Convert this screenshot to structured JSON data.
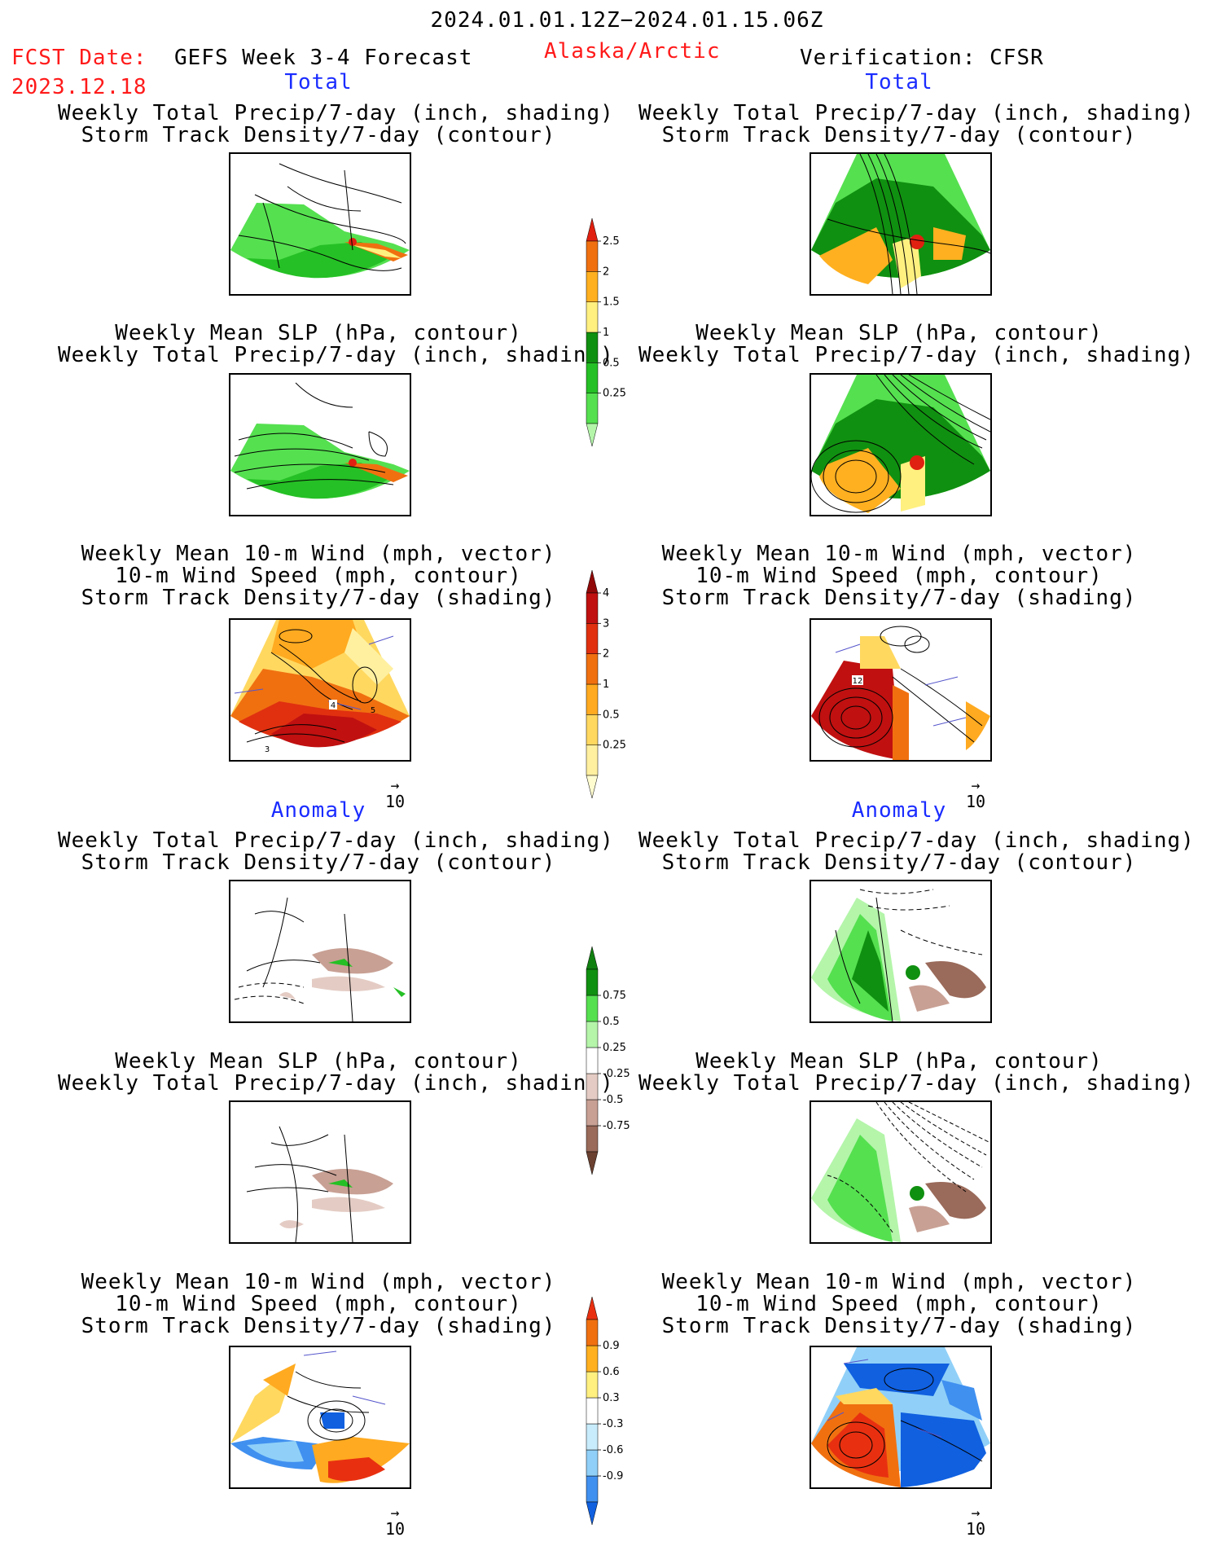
{
  "header": {
    "period": "2024.01.01.12Z−2024.01.15.06Z",
    "fcst_label": "FCST Date:",
    "fcst_date": "2023.12.18",
    "forecast_name": "GEFS Week 3-4 Forecast",
    "region": "Alaska/Arctic",
    "verification": "Verification: CFSR"
  },
  "sections": {
    "total_left": "Total",
    "total_right": "Total",
    "anomaly_left": "Anomaly",
    "anomaly_right": "Anomaly"
  },
  "titles": {
    "precip_storm": [
      "Weekly Total Precip/7-day (inch, shading)",
      "Storm Track Density/7-day (contour)"
    ],
    "slp_precip": [
      "Weekly Mean SLP (hPa, contour)",
      "Weekly Total Precip/7-day (inch, shading)"
    ],
    "wind": [
      "Weekly Mean 10-m Wind (mph, vector)",
      "10-m Wind Speed (mph, contour)",
      "Storm Track Density/7-day (shading)"
    ]
  },
  "reference_vector": "10",
  "map_labels": {
    "wind_total_left": [
      "4",
      "5",
      "3"
    ],
    "wind_total_right": [
      "12"
    ]
  },
  "chart_data": [
    {
      "type": "heatmap",
      "name": "precip colorbar (total)",
      "levels": [
        "0.25",
        "0.5",
        "1",
        "1.5",
        "2",
        "2.5"
      ],
      "colors": [
        "#b4f5aa",
        "#55e050",
        "#25c025",
        "#109010",
        "#fff080",
        "#ffb020",
        "#f07010",
        "#e02010"
      ]
    },
    {
      "type": "heatmap",
      "name": "storm track colorbar (total)",
      "levels": [
        "0.25",
        "0.5",
        "1",
        "2",
        "3",
        "4"
      ],
      "colors": [
        "#fffcd0",
        "#fff0a0",
        "#ffd860",
        "#ffaa20",
        "#f07010",
        "#e03010",
        "#c01010",
        "#900808"
      ]
    },
    {
      "type": "heatmap",
      "name": "precip anomaly colorbar",
      "levels": [
        "-0.75",
        "-0.5",
        "-0.25",
        "0.25",
        "0.5",
        "0.75"
      ],
      "colors": [
        "#6a4030",
        "#9a6a5a",
        "#c8a094",
        "#e4ccc4",
        "#ffffff",
        "#b4f5aa",
        "#55e050",
        "#109010",
        "#108010"
      ]
    },
    {
      "type": "heatmap",
      "name": "storm track anomaly colorbar",
      "levels": [
        "-0.9",
        "-0.6",
        "-0.3",
        "0.3",
        "0.6",
        "0.9"
      ],
      "colors": [
        "#1060e0",
        "#4090f0",
        "#90d0f8",
        "#c8ecfc",
        "#ffffff",
        "#fff080",
        "#ffb020",
        "#f07010",
        "#e83010"
      ]
    }
  ],
  "colors": {
    "precip_green_light": "#b4f5aa",
    "precip_green": "#55e050",
    "precip_green_dark": "#109010",
    "precip_orange": "#ffb020",
    "precip_red": "#e02010",
    "storm_dark_red": "#c01010",
    "anom_brown": "#9a6a5a",
    "anom_blue": "#1060e0",
    "vector": "#5555cc"
  }
}
